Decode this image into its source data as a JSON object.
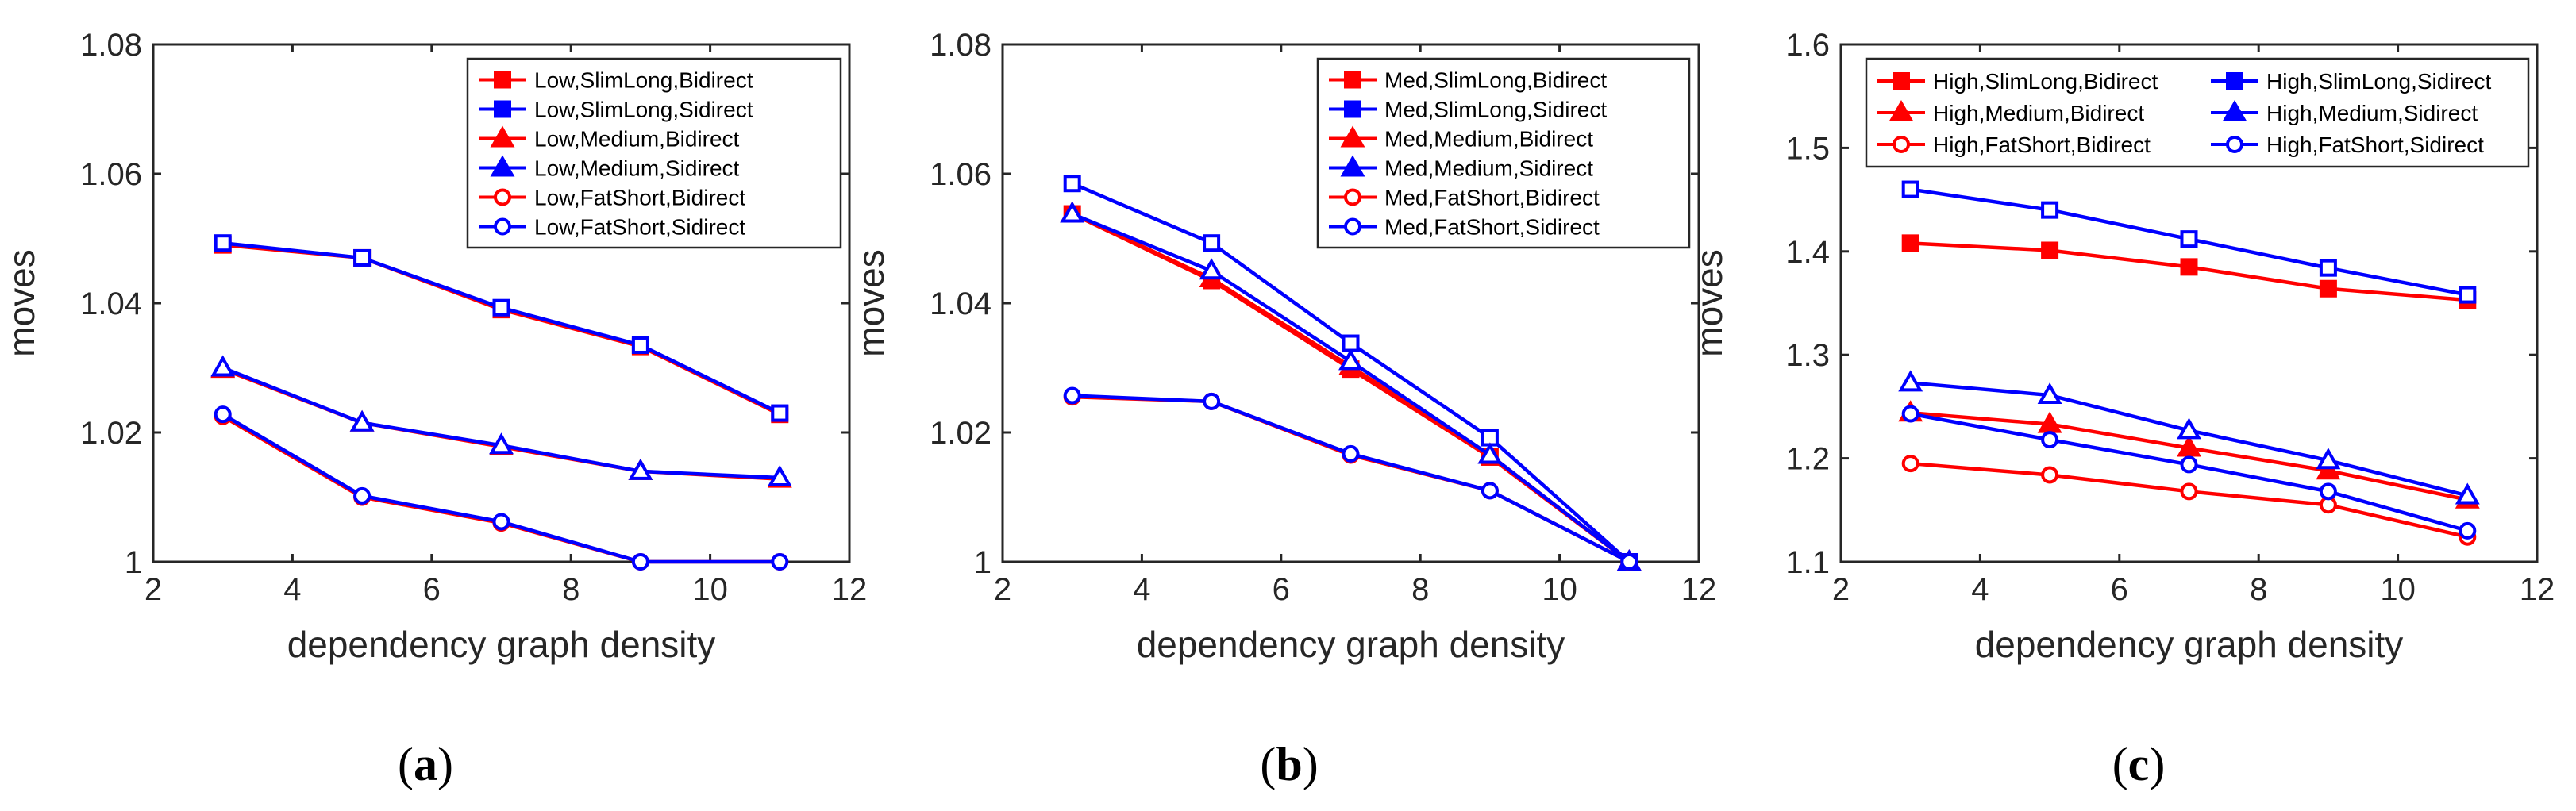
{
  "colors": {
    "Bidirect": "#ff0000",
    "Sidirect": "#0000ff",
    "axis": "#262626",
    "text": "#262626"
  },
  "chart_data": [
    {
      "type": "line",
      "panel_label": "(a)",
      "caption": {
        "open": "(",
        "letter": "a",
        "close": ")"
      },
      "xlabel": "dependency graph density",
      "ylabel": "moves",
      "xlim": [
        2,
        12
      ],
      "ylim": [
        1,
        1.08
      ],
      "xticks": [
        "2",
        "4",
        "6",
        "8",
        "10",
        "12"
      ],
      "yticks": [
        "1",
        "1.02",
        "1.04",
        "1.06",
        "1.08"
      ],
      "grid": false,
      "legend": {
        "placement": "top-right",
        "columns": 1
      },
      "x": [
        3,
        5,
        7,
        9,
        11
      ],
      "series": [
        {
          "name": "Low,SlimLong,Bidirect",
          "marker": "square",
          "color": "#ff0000",
          "values": [
            1.049,
            1.047,
            1.039,
            1.0333,
            1.0228
          ]
        },
        {
          "name": "Low,SlimLong,Sidirect",
          "marker": "square",
          "color": "#0000ff",
          "values": [
            1.0493,
            1.047,
            1.0393,
            1.0335,
            1.023
          ]
        },
        {
          "name": "Low,Medium,Bidirect",
          "marker": "triangle",
          "color": "#ff0000",
          "values": [
            1.0298,
            1.0215,
            1.0178,
            1.014,
            1.0128
          ]
        },
        {
          "name": "Low,Medium,Sidirect",
          "marker": "triangle",
          "color": "#0000ff",
          "values": [
            1.03,
            1.0215,
            1.018,
            1.014,
            1.013
          ]
        },
        {
          "name": "Low,FatShort,Bidirect",
          "marker": "circle",
          "color": "#ff0000",
          "values": [
            1.0225,
            1.01,
            1.006,
            1.0,
            1.0
          ]
        },
        {
          "name": "Low,FatShort,Sidirect",
          "marker": "circle",
          "color": "#0000ff",
          "values": [
            1.0228,
            1.0102,
            1.0062,
            1.0,
            1.0
          ]
        }
      ]
    },
    {
      "type": "line",
      "panel_label": "(b)",
      "caption": {
        "open": "(",
        "letter": "b",
        "close": ")"
      },
      "xlabel": "dependency graph density",
      "ylabel": "moves",
      "xlim": [
        2,
        12
      ],
      "ylim": [
        1,
        1.08
      ],
      "xticks": [
        "2",
        "4",
        "6",
        "8",
        "10",
        "12"
      ],
      "yticks": [
        "1",
        "1.02",
        "1.04",
        "1.06",
        "1.08"
      ],
      "grid": false,
      "legend": {
        "placement": "top-right",
        "columns": 1
      },
      "x": [
        3,
        5,
        7,
        9,
        11
      ],
      "series": [
        {
          "name": "Med,SlimLong,Bidirect",
          "marker": "square",
          "color": "#ff0000",
          "values": [
            1.0538,
            1.0435,
            1.0298,
            1.0162,
            1.0
          ]
        },
        {
          "name": "Med,SlimLong,Sidirect",
          "marker": "square",
          "color": "#0000ff",
          "values": [
            1.0585,
            1.0493,
            1.0338,
            1.0192,
            1.0
          ]
        },
        {
          "name": "Med,Medium,Bidirect",
          "marker": "triangle",
          "color": "#ff0000",
          "values": [
            1.0538,
            1.0438,
            1.0302,
            1.0165,
            1.0
          ]
        },
        {
          "name": "Med,Medium,Sidirect",
          "marker": "triangle",
          "color": "#0000ff",
          "values": [
            1.0538,
            1.045,
            1.031,
            1.0165,
            1.0
          ]
        },
        {
          "name": "Med,FatShort,Bidirect",
          "marker": "circle",
          "color": "#ff0000",
          "values": [
            1.0255,
            1.0248,
            1.0165,
            1.011,
            1.0
          ]
        },
        {
          "name": "Med,FatShort,Sidirect",
          "marker": "circle",
          "color": "#0000ff",
          "values": [
            1.0257,
            1.0248,
            1.0167,
            1.011,
            1.0
          ]
        }
      ]
    },
    {
      "type": "line",
      "panel_label": "(c)",
      "caption": {
        "open": "(",
        "letter": "c",
        "close": ")"
      },
      "xlabel": "dependency graph density",
      "ylabel": "moves",
      "xlim": [
        2,
        12
      ],
      "ylim": [
        1.1,
        1.6
      ],
      "xticks": [
        "2",
        "4",
        "6",
        "8",
        "10",
        "12"
      ],
      "yticks": [
        "1.1",
        "1.2",
        "1.3",
        "1.4",
        "1.5",
        "1.6"
      ],
      "grid": false,
      "legend": {
        "placement": "top",
        "columns": 2
      },
      "x": [
        3,
        5,
        7,
        9,
        11
      ],
      "series": [
        {
          "name": "High,SlimLong,Bidirect",
          "marker": "square",
          "color": "#ff0000",
          "values": [
            1.408,
            1.401,
            1.385,
            1.364,
            1.353
          ]
        },
        {
          "name": "High,SlimLong,Sidirect",
          "marker": "square",
          "color": "#0000ff",
          "values": [
            1.46,
            1.44,
            1.412,
            1.384,
            1.358
          ]
        },
        {
          "name": "High,Medium,Bidirect",
          "marker": "triangle",
          "color": "#ff0000",
          "values": [
            1.244,
            1.233,
            1.21,
            1.188,
            1.16
          ]
        },
        {
          "name": "High,Medium,Sidirect",
          "marker": "triangle",
          "color": "#0000ff",
          "values": [
            1.273,
            1.261,
            1.227,
            1.198,
            1.164
          ]
        },
        {
          "name": "High,FatShort,Bidirect",
          "marker": "circle",
          "color": "#ff0000",
          "values": [
            1.195,
            1.184,
            1.168,
            1.155,
            1.124
          ]
        },
        {
          "name": "High,FatShort,Sidirect",
          "marker": "circle",
          "color": "#0000ff",
          "values": [
            1.243,
            1.218,
            1.194,
            1.168,
            1.13
          ]
        }
      ]
    }
  ]
}
